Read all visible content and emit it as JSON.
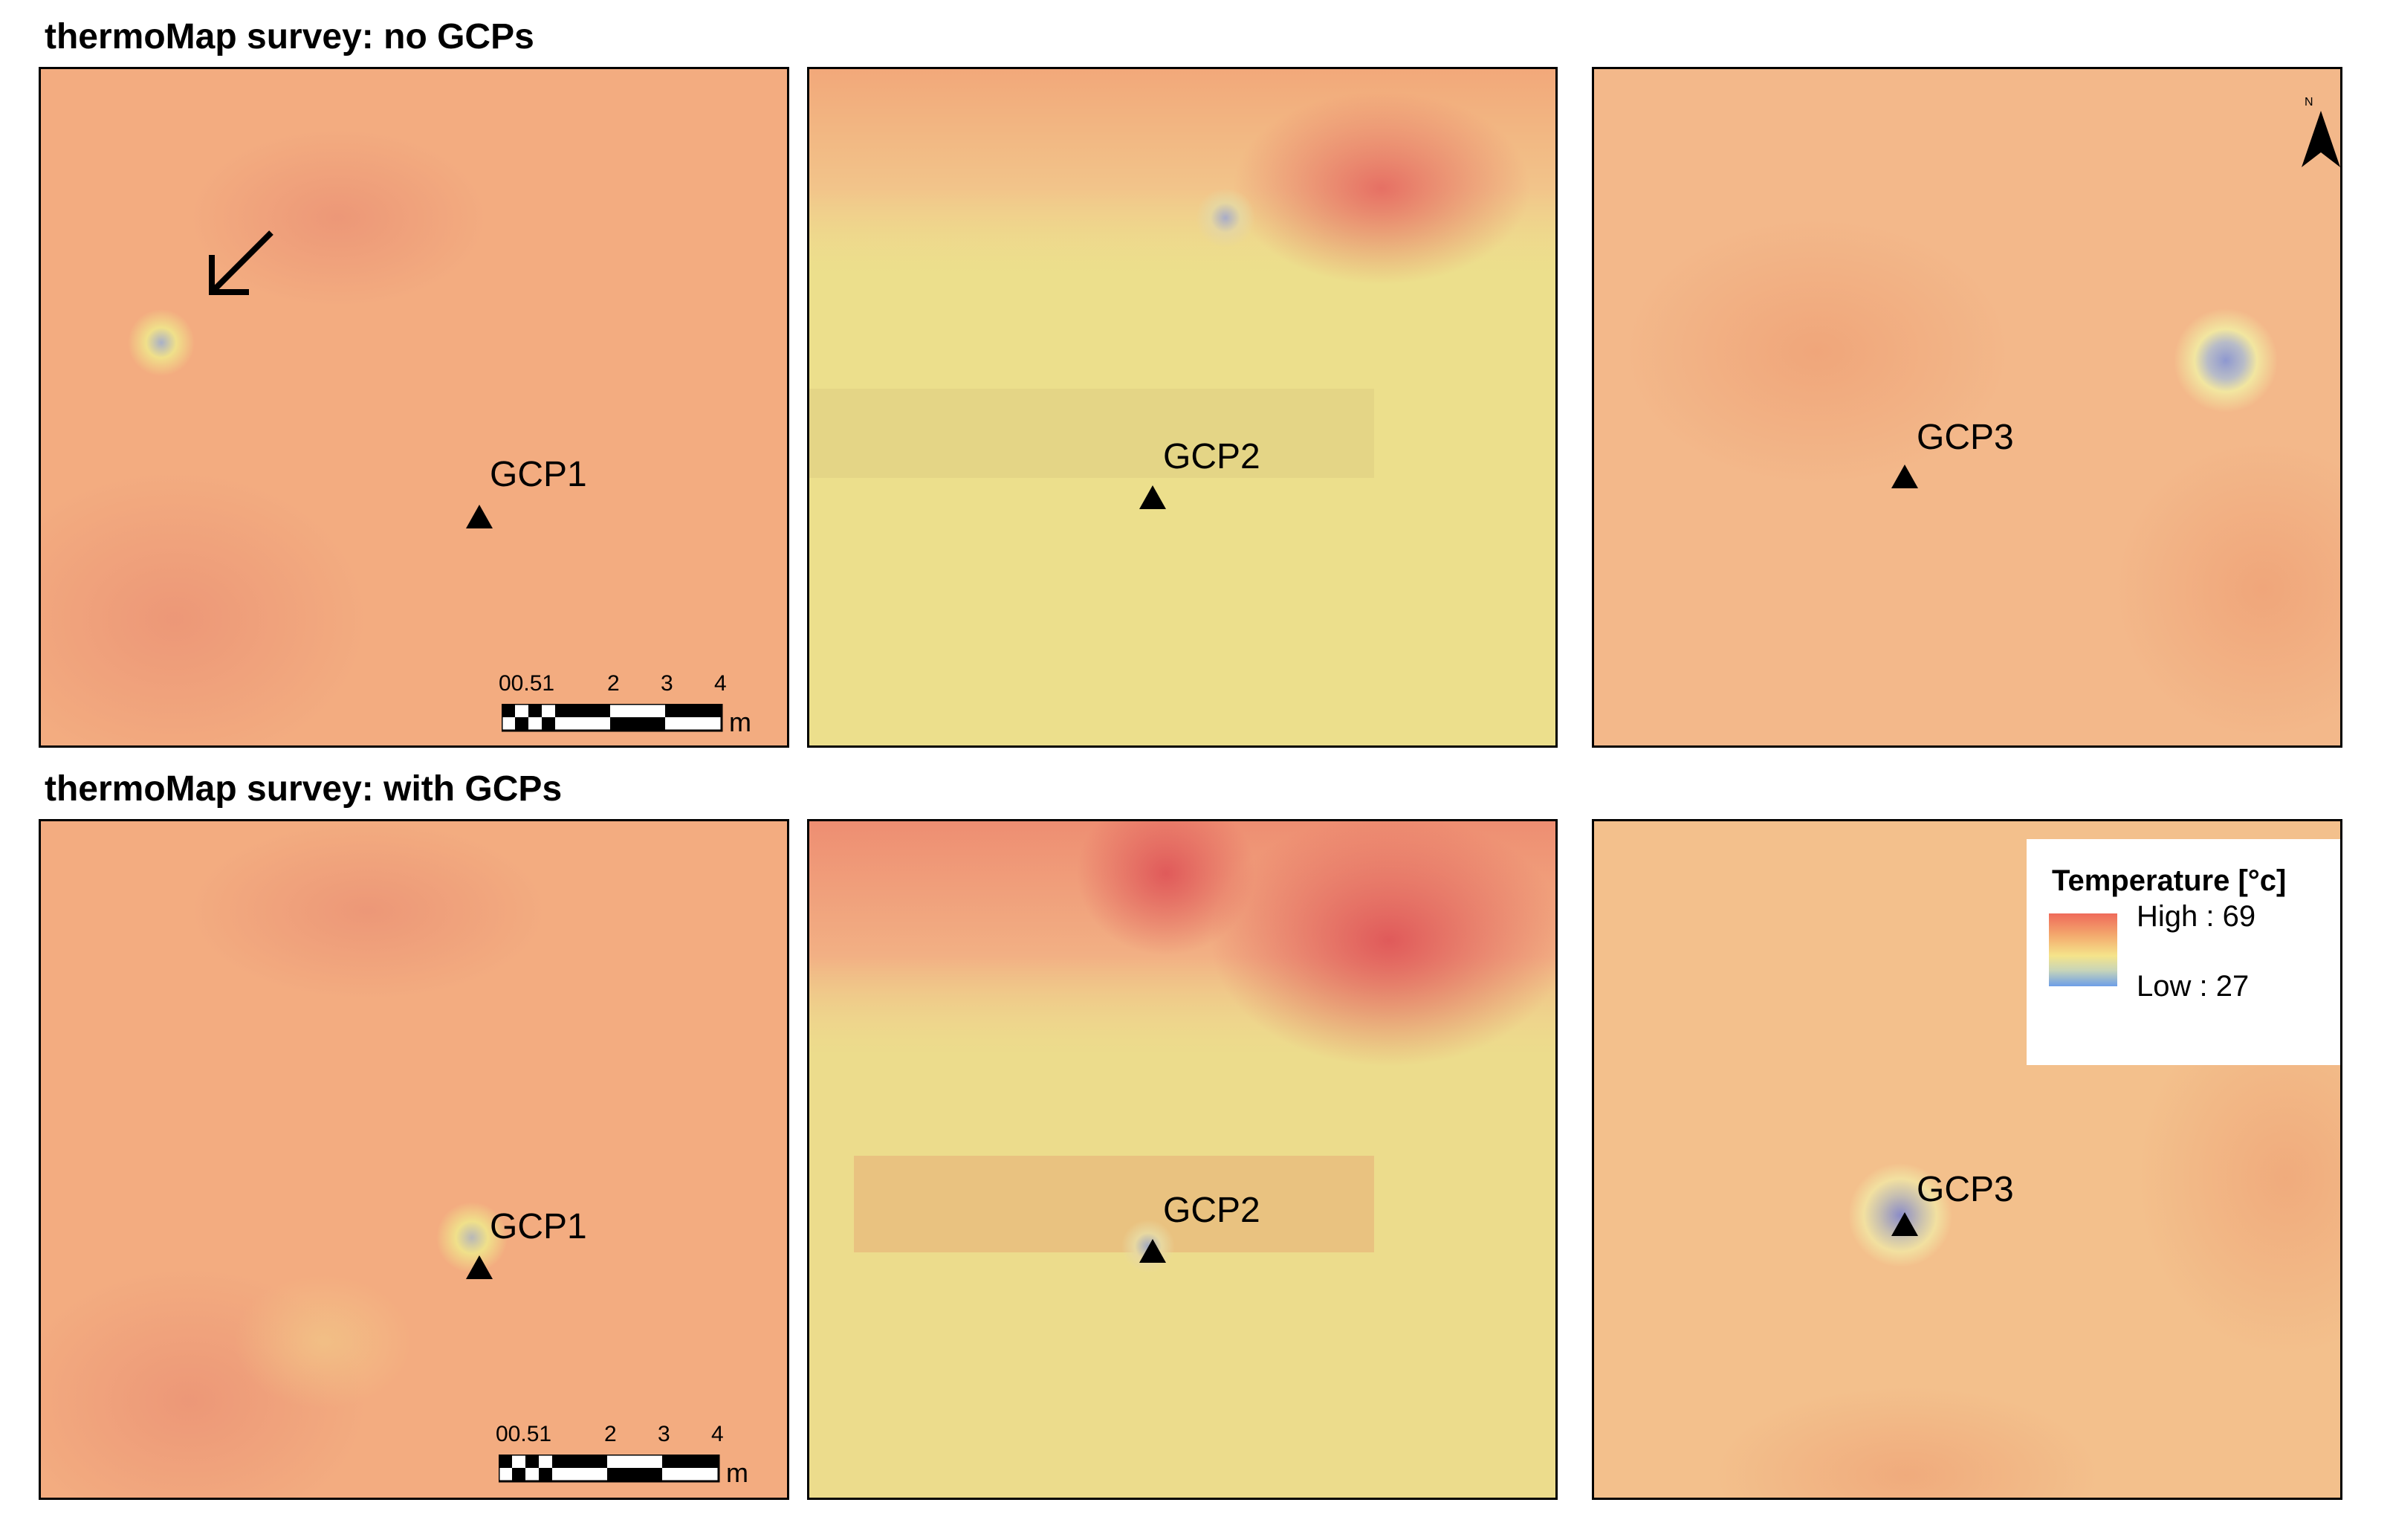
{
  "rows": [
    {
      "title": "thermoMap survey: no GCPs"
    },
    {
      "title": "thermoMap survey: with GCPs"
    }
  ],
  "gcp_labels": [
    "GCP1",
    "GCP2",
    "GCP3"
  ],
  "scale_bar": {
    "ticks": [
      "00.51",
      "2",
      "3",
      "4"
    ],
    "unit": "m"
  },
  "legend": {
    "title": "Temperature [°c]",
    "high": "High : 69",
    "low": "Low : 27"
  },
  "north_arrow_label": "N",
  "colors": {
    "hot": "#ef6a5a",
    "warm": "#f3a36e",
    "mild": "#f5e48a",
    "cool": "#c8d5b8",
    "cold": "#6d9ee8",
    "border": "#000000"
  },
  "icons": [
    "arrow-pointer-icon",
    "north-arrow-icon",
    "gcp-triangle-icon"
  ]
}
